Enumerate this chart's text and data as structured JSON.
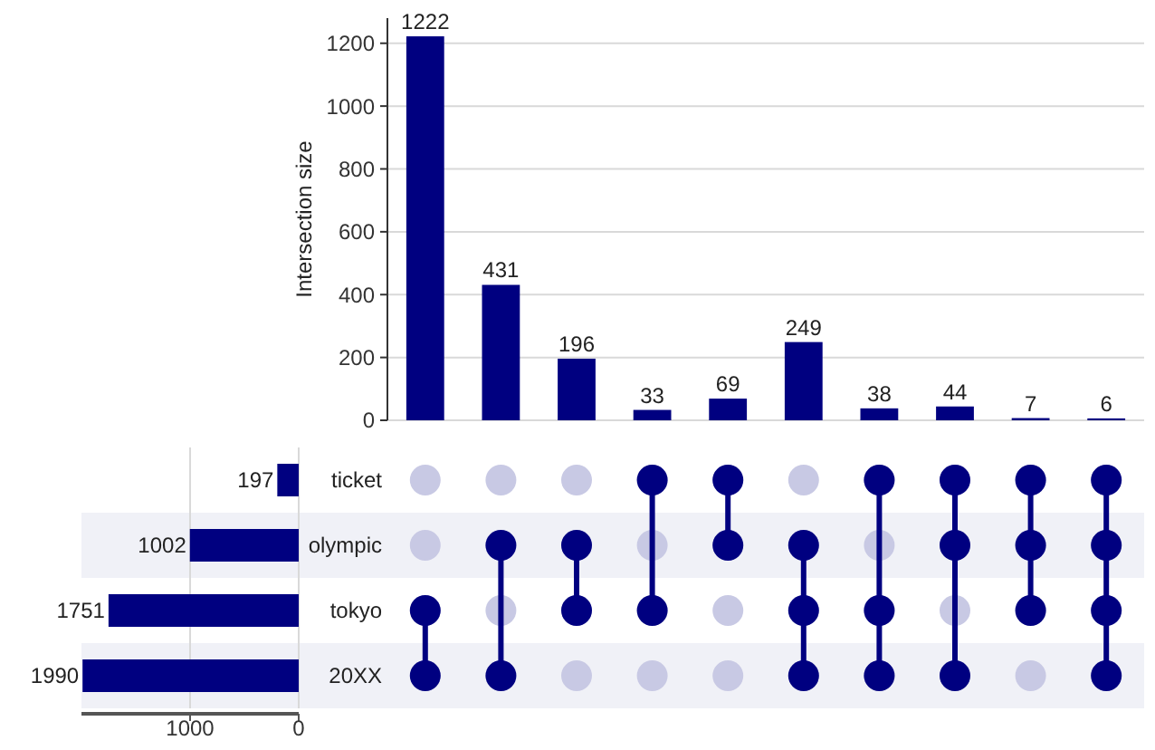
{
  "chart_data": [
    {
      "type": "bar",
      "ylabel": "Intersection size",
      "categories": [
        null,
        null,
        null,
        null,
        null,
        null,
        null,
        null,
        null,
        null
      ],
      "series": [
        {
          "color": "#000080",
          "values": [
            1222,
            431,
            196,
            33,
            69,
            249,
            38,
            44,
            7,
            6
          ]
        }
      ],
      "ylim": [
        0,
        1280
      ],
      "yticks": [
        0,
        200,
        400,
        600,
        800,
        1000,
        1200
      ],
      "grid": "y",
      "data_labels": true
    },
    {
      "type": "bar",
      "orientation": "horizontal",
      "categories": [
        "ticket",
        "olympic",
        "tokyo",
        "20XX"
      ],
      "series": [
        {
          "color": "#000080",
          "values": [
            197,
            1002,
            1751,
            1990
          ]
        }
      ],
      "xlim": [
        2000,
        0
      ],
      "xticks": [
        1000,
        0
      ],
      "grid": "x",
      "data_labels": true
    }
  ]
}
